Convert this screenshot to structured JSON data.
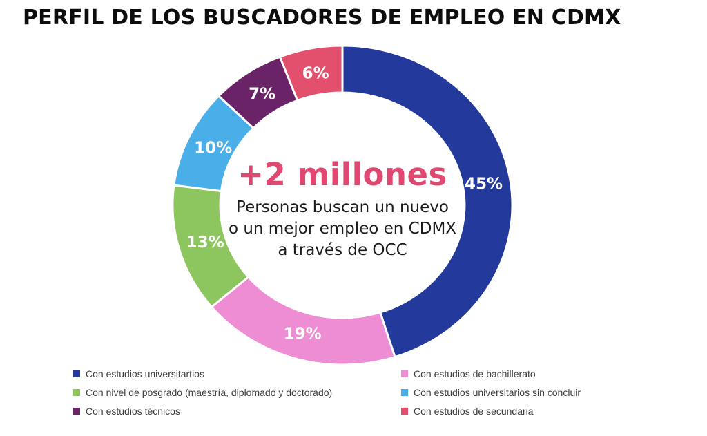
{
  "title": "PERFIL DE LOS BUSCADORES DE EMPLEO EN CDMX",
  "center": {
    "headline": "+2 millones",
    "headline_color": "#DF4870",
    "line1": "Personas buscan un nuevo",
    "line2": "o un mejor empleo en CDMX",
    "line3": "a través de OCC"
  },
  "chart_data": {
    "type": "pie",
    "subtype": "donut",
    "title": "PERFIL DE LOS BUSCADORES DE EMPLEO EN CDMX",
    "start_angle_deg": 0,
    "direction": "clockwise",
    "center_text": "+2 millones Personas buscan un nuevo o un mejor empleo en CDMX a través de OCC",
    "label_color": "#ffffff",
    "series": [
      {
        "label": "Con estudios universitartios",
        "value": 45,
        "display": "45%",
        "color": "#23399B"
      },
      {
        "label": "Con estudios de bachillerato",
        "value": 19,
        "display": "19%",
        "color": "#EE8CD4"
      },
      {
        "label": "Con nivel de posgrado (maestría, diplomado y doctorado)",
        "value": 13,
        "display": "13%",
        "color": "#8DC65E"
      },
      {
        "label": "Con estudios universitarios sin concluir",
        "value": 10,
        "display": "10%",
        "color": "#4AAFE8"
      },
      {
        "label": "Con estudios técnicos",
        "value": 7,
        "display": "7%",
        "color": "#6A2367"
      },
      {
        "label": "Con estudios de secundaria",
        "value": 6,
        "display": "6%",
        "color": "#E2506E"
      }
    ]
  },
  "legend": {
    "left": [
      {
        "label": "Con estudios universitartios",
        "color": "#23399B"
      },
      {
        "label": "Con nivel de posgrado (maestría, diplomado y doctorado)",
        "color": "#8DC65E"
      },
      {
        "label": "Con estudios técnicos",
        "color": "#6A2367"
      }
    ],
    "right": [
      {
        "label": "Con estudios de bachillerato",
        "color": "#EE8CD4"
      },
      {
        "label": "Con estudios universitarios sin concluir",
        "color": "#4AAFE8"
      },
      {
        "label": "Con estudios de secundaria",
        "color": "#E2506E"
      }
    ]
  }
}
